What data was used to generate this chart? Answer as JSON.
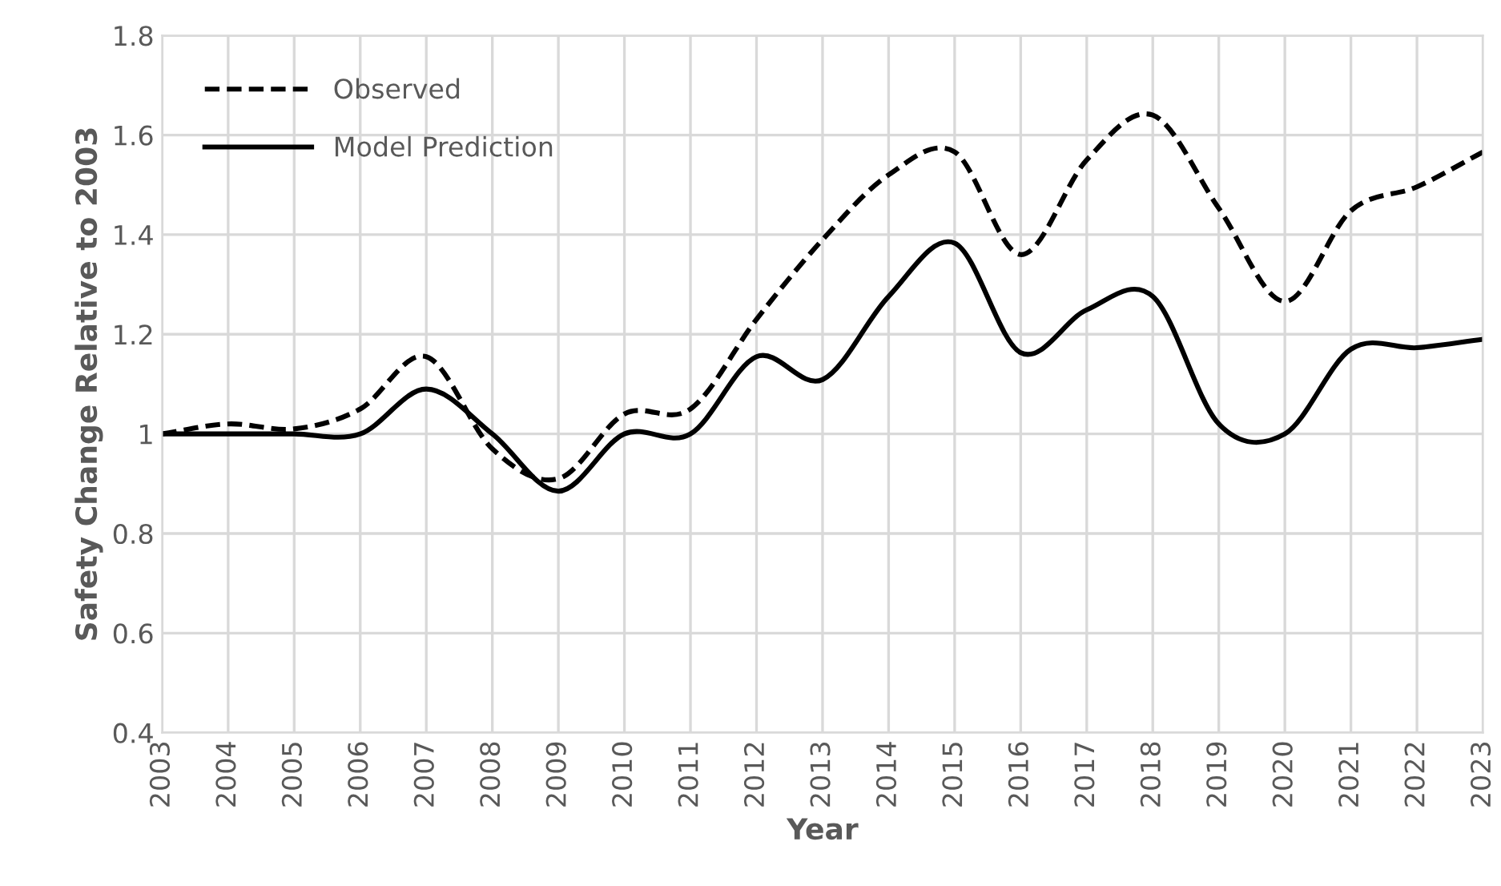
{
  "chart_data": {
    "type": "line",
    "xlabel": "Year",
    "ylabel": "Safety Change Relative to 2003",
    "x": [
      2003,
      2004,
      2005,
      2006,
      2007,
      2008,
      2009,
      2010,
      2011,
      2012,
      2013,
      2014,
      2015,
      2016,
      2017,
      2018,
      2019,
      2020,
      2021,
      2022,
      2023
    ],
    "series": [
      {
        "name": "Observed",
        "color": "#000000",
        "line_style": "dashed",
        "values": [
          1.0,
          1.02,
          1.01,
          1.05,
          1.155,
          0.97,
          0.91,
          1.04,
          1.05,
          1.23,
          1.39,
          1.52,
          1.566,
          1.36,
          1.55,
          1.64,
          1.453,
          1.266,
          1.448,
          1.496,
          1.566
        ]
      },
      {
        "name": "Model Prediction",
        "color": "#000000",
        "line_style": "solid",
        "values": [
          1.0,
          1.0,
          1.0,
          1.0,
          1.09,
          1.0,
          0.885,
          1.0,
          1.0,
          1.155,
          1.109,
          1.276,
          1.383,
          1.163,
          1.249,
          1.276,
          1.02,
          1.0,
          1.17,
          1.173,
          1.19
        ]
      }
    ],
    "xlim": [
      2003,
      2023
    ],
    "xticks": [
      2003,
      2004,
      2005,
      2006,
      2007,
      2008,
      2009,
      2010,
      2011,
      2012,
      2013,
      2014,
      2015,
      2016,
      2017,
      2018,
      2019,
      2020,
      2021,
      2022,
      2023
    ],
    "ylim": [
      0.4,
      1.8
    ],
    "yticks": [
      0.4,
      0.6,
      0.8,
      1,
      1.2,
      1.4,
      1.6,
      1.8
    ],
    "grid": true,
    "legend": "top left",
    "marker": "none"
  }
}
